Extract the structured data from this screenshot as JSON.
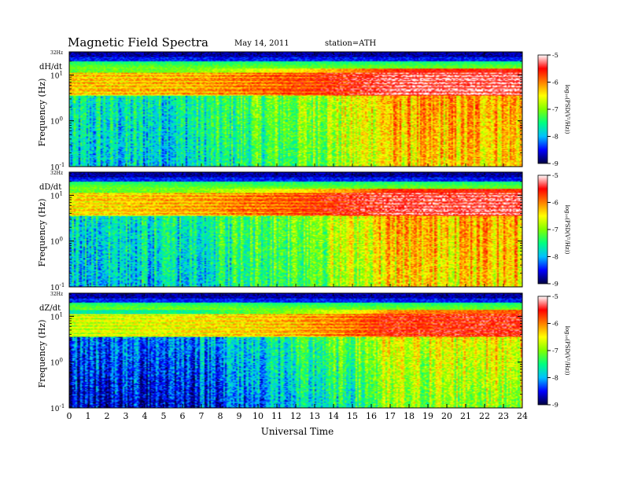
{
  "header": {
    "title": "Magnetic  Field  Spectra",
    "date": "May 14, 2011",
    "station": "station=ATH"
  },
  "chart_data": {
    "type": "heatmap",
    "xlabel": "Universal Time",
    "x_ticks": [
      "0",
      "1",
      "2",
      "3",
      "4",
      "5",
      "6",
      "7",
      "8",
      "9",
      "10",
      "11",
      "12",
      "13",
      "14",
      "15",
      "16",
      "17",
      "18",
      "19",
      "20",
      "21",
      "22",
      "23",
      "24"
    ],
    "xlim": [
      0,
      24
    ],
    "ylabel": "Frequency (Hz)",
    "y_scale": "log",
    "ylim": [
      0.1,
      32
    ],
    "top_label": "32Hz",
    "y_tick_labels": [
      {
        "base": "10",
        "exp": "-1"
      },
      {
        "base": "10",
        "exp": "0"
      },
      {
        "base": "10",
        "exp": "1"
      }
    ],
    "colorbar": {
      "label": "log₁₀(PSD(V²/Hz))",
      "ticks": [
        "-5",
        "-6",
        "-7",
        "-8",
        "-9"
      ],
      "range": [
        -9,
        -5
      ],
      "colormap": [
        "#000040",
        "#0000ff",
        "#00c0ff",
        "#00ff80",
        "#80ff00",
        "#ffff00",
        "#ff8000",
        "#ff0000",
        "#ffffff"
      ]
    },
    "panels": [
      {
        "name": "dH/dt",
        "profile_hours": [
          0,
          6,
          12,
          15,
          17,
          24
        ],
        "background_by_hour": [
          -7.7,
          -7.6,
          -7.0,
          -6.6,
          -6.2,
          -6.1
        ],
        "line_band_by_hour": [
          -6.2,
          -6.1,
          -5.7,
          -5.4,
          -5.2,
          -5.15
        ]
      },
      {
        "name": "dD/dt",
        "profile_hours": [
          0,
          6,
          12,
          15,
          17,
          24
        ],
        "background_by_hour": [
          -7.7,
          -7.6,
          -7.0,
          -6.6,
          -6.2,
          -6.15
        ],
        "line_band_by_hour": [
          -6.3,
          -6.1,
          -5.7,
          -5.4,
          -5.25,
          -5.2
        ]
      },
      {
        "name": "dZ/dt",
        "profile_hours": [
          0,
          6,
          12,
          15,
          17,
          24
        ],
        "background_by_hour": [
          -8.2,
          -8.1,
          -7.5,
          -7.1,
          -6.6,
          -6.4
        ],
        "line_band_by_hour": [
          -6.6,
          -6.4,
          -6.1,
          -5.8,
          -5.5,
          -5.4
        ]
      }
    ]
  }
}
